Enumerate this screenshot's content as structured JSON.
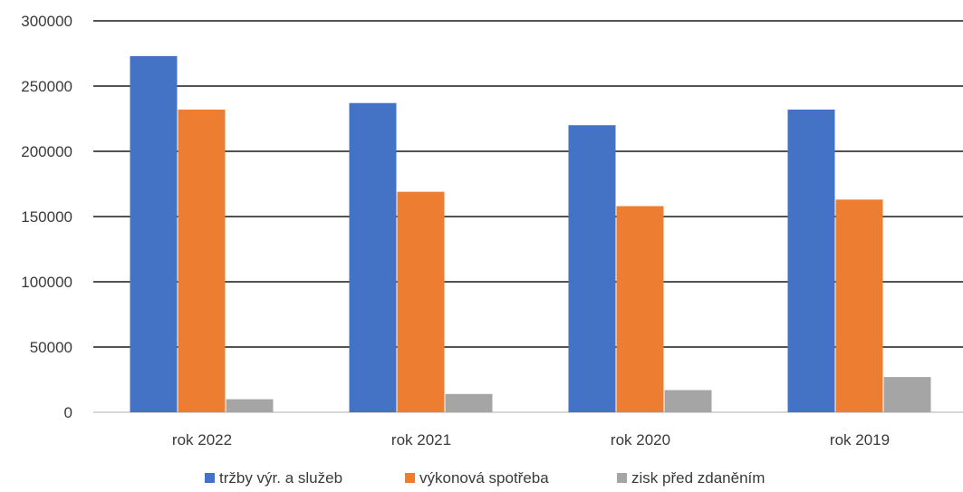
{
  "chart_data": {
    "type": "bar",
    "categories": [
      "rok 2022",
      "rok 2021",
      "rok 2020",
      "rok 2019"
    ],
    "series": [
      {
        "name": "tržby výr. a služeb",
        "color": "#4472C4",
        "values": [
          273000,
          237000,
          220000,
          232000
        ]
      },
      {
        "name": "výkonová spotřeba",
        "color": "#ED7D31",
        "values": [
          232000,
          169000,
          158000,
          163000
        ]
      },
      {
        "name": "zisk před zdaněním",
        "color": "#A5A5A5",
        "values": [
          10000,
          14000,
          17000,
          27000
        ]
      }
    ],
    "ylim": [
      0,
      300000
    ],
    "yticks": [
      0,
      50000,
      100000,
      150000,
      200000,
      250000,
      300000
    ],
    "ytick_labels": [
      "0",
      "50000",
      "100000",
      "150000",
      "200000",
      "250000",
      "300000"
    ],
    "grid": true,
    "legend_position": "bottom",
    "gridline_color": "#1a1a1a",
    "axis_color": "#bfbfbf"
  }
}
